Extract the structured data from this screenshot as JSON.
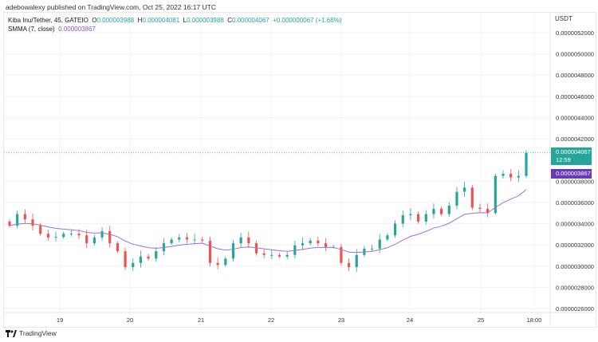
{
  "header": {
    "published": "adebowalexy published on TradingView.com, Oct 25, 2022 16:17 UTC"
  },
  "legend": {
    "symbol": "Kiba Inu/Tether, 45, GATEIO",
    "o_label": "O",
    "o": "0.000003988",
    "h_label": "H",
    "h": "0.000004081",
    "l_label": "L",
    "l": "0.000003988",
    "c_label": "C",
    "c": "0.000004067",
    "change": "+0.000000067 (+1.68%)",
    "indicator": "SMMA (7, close)",
    "indicator_value": "0.000003867"
  },
  "price_axis": {
    "currency": "USDT",
    "last_price": "0.000004067",
    "countdown": "12:59",
    "smma_label": "0.000003867"
  },
  "footer": {
    "brand": "TradingView"
  },
  "colors": {
    "up": "#26a69a",
    "down": "#ef5350",
    "smma": "#9c73d6",
    "last_label": "#26a69a",
    "smma_label": "#673ab7"
  },
  "chart_data": {
    "type": "candlestick",
    "ylim": [
      2.5e-06,
      5.3e-06
    ],
    "y_ticks": [
      "0.0000052000",
      "0.0000050000",
      "0.0000048000",
      "0.0000046000",
      "0.0000044000",
      "0.0000042000",
      "0.0000038000",
      "0.0000036000",
      "0.0000034000",
      "0.0000032000",
      "0.0000030000",
      "0.0000028000",
      "0.0000026000"
    ],
    "x_ticks": [
      "19",
      "20",
      "21",
      "22",
      "23",
      "24",
      "25",
      "18:00"
    ],
    "closes": [
      3.38e-06,
      3.49e-06,
      3.44e-06,
      3.38e-06,
      3.305e-06,
      3.27e-06,
      3.275e-06,
      3.305e-06,
      3.305e-06,
      3.29e-06,
      3.215e-06,
      3.27e-06,
      3.33e-06,
      3.215e-06,
      3.14e-06,
      2.99e-06,
      3.03e-06,
      3.09e-06,
      3.07e-06,
      3.14e-06,
      3.215e-06,
      3.25e-06,
      3.27e-06,
      3.25e-06,
      3.25e-06,
      3.24e-06,
      3.03e-06,
      3.01e-06,
      3.07e-06,
      3.215e-06,
      3.27e-06,
      3.215e-06,
      3.12e-06,
      3.105e-06,
      3.105e-06,
      3.09e-06,
      3.105e-06,
      3.195e-06,
      3.215e-06,
      3.24e-06,
      3.215e-06,
      3.18e-06,
      3.18e-06,
      3.03e-06,
      2.99e-06,
      3.105e-06,
      3.165e-06,
      3.165e-06,
      3.25e-06,
      3.29e-06,
      3.4e-06,
      3.48e-06,
      3.49e-06,
      3.42e-06,
      3.49e-06,
      3.54e-06,
      3.49e-06,
      3.57e-06,
      3.7e-06,
      3.74e-06,
      3.55e-06,
      3.54e-06,
      3.5e-06,
      3.85e-06,
      3.87e-06,
      3.835e-06,
      3.85e-06,
      4.067e-06
    ],
    "smma_period": 7,
    "last_price": 4.067e-06,
    "smma_last": 3.867e-06
  }
}
